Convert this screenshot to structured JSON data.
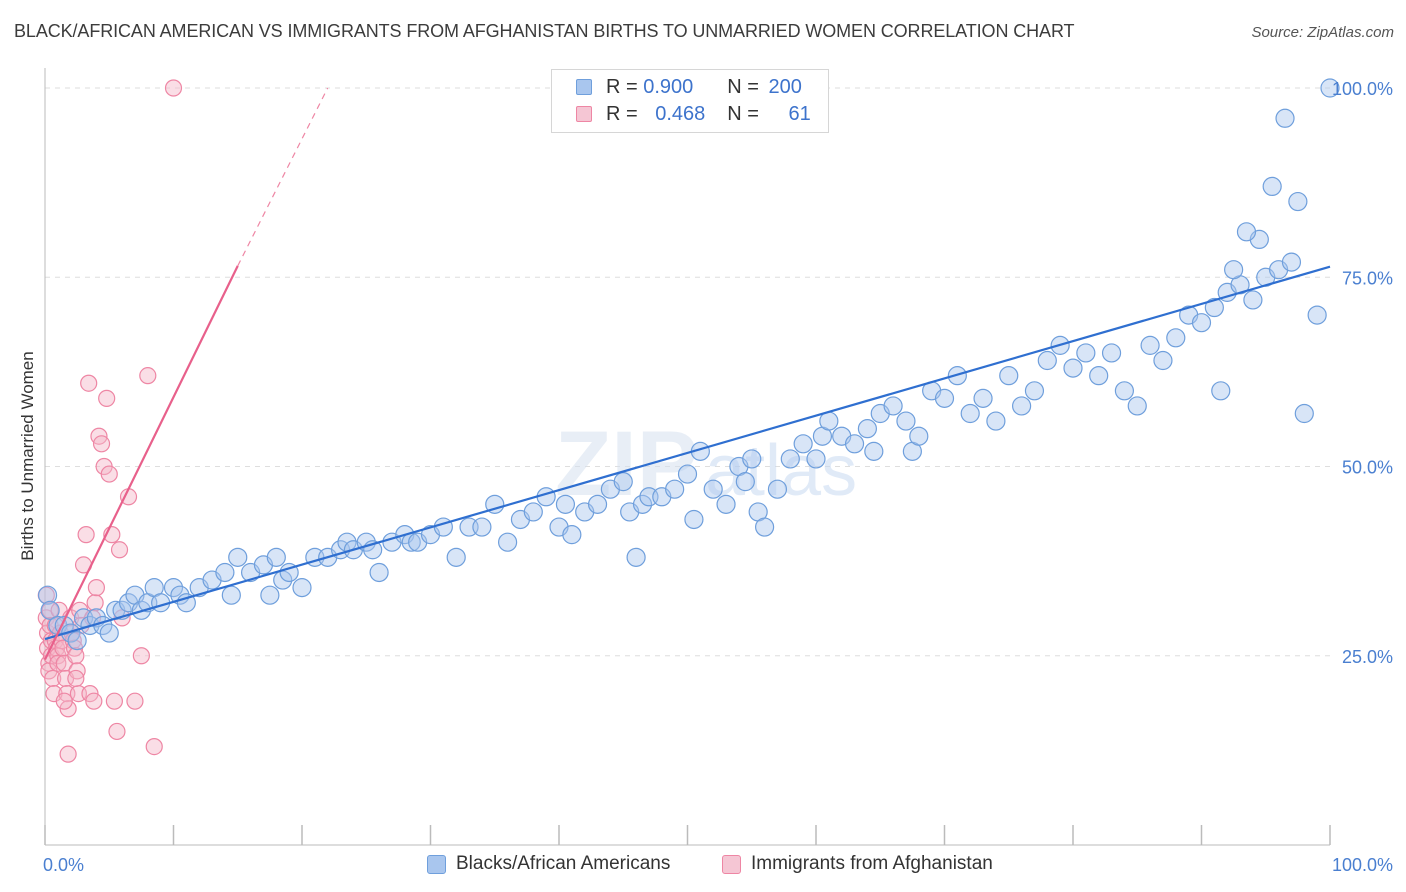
{
  "title": "BLACK/AFRICAN AMERICAN VS IMMIGRANTS FROM AFGHANISTAN BIRTHS TO UNMARRIED WOMEN CORRELATION CHART",
  "source": "Source: ZipAtlas.com",
  "colors": {
    "blue_fill": "#a9c6ee",
    "blue_stroke": "#6f9fdc",
    "blue_line": "#2f6fd0",
    "pink_fill": "#f5b6c8",
    "pink_stroke": "#ee86a4",
    "pink_line": "#e8608b",
    "tick_text": "#4a7fd0",
    "grid": "#dedede"
  },
  "watermark": {
    "zip": "ZIP",
    "atlas": "atlas"
  },
  "legend": {
    "rows": [
      {
        "r_label": "R = ",
        "r_value": "0.900",
        "n_label": "N = ",
        "n_value": "200"
      },
      {
        "r_label": "R = ",
        "r_value": "0.468",
        "n_label": "N = ",
        "n_value": "61"
      }
    ]
  },
  "bottom_legend": [
    "Blacks/African Americans",
    "Immigrants from Afghanistan"
  ],
  "chart_data": {
    "type": "scatter",
    "title": "BLACK/AFRICAN AMERICAN VS IMMIGRANTS FROM AFGHANISTAN BIRTHS TO UNMARRIED WOMEN CORRELATION CHART",
    "xlabel": "",
    "ylabel": "Births to Unmarried Women",
    "xlim": [
      0,
      100
    ],
    "ylim": [
      0,
      100
    ],
    "x_tick_labels": [
      "0.0%",
      "100.0%"
    ],
    "y_tick_labels": [
      "25.0%",
      "50.0%",
      "75.0%",
      "100.0%"
    ],
    "y_ticks": [
      25,
      50,
      75,
      100
    ],
    "grid": true,
    "legend_position": "top-center",
    "series": [
      {
        "name": "Blacks/African Americans",
        "color": "#a9c6ee",
        "r": 0.9,
        "n": 200,
        "trend": {
          "x": [
            0,
            100
          ],
          "y": [
            27.2,
            76.4
          ]
        },
        "points": [
          [
            0.2,
            33
          ],
          [
            0.4,
            31
          ],
          [
            1.0,
            29
          ],
          [
            1.5,
            29
          ],
          [
            2.0,
            28
          ],
          [
            2.5,
            27
          ],
          [
            3.0,
            30
          ],
          [
            3.5,
            29
          ],
          [
            4.0,
            30
          ],
          [
            4.5,
            29
          ],
          [
            5.0,
            28
          ],
          [
            5.5,
            31
          ],
          [
            6.0,
            31
          ],
          [
            6.5,
            32
          ],
          [
            7.0,
            33
          ],
          [
            7.5,
            31
          ],
          [
            8.0,
            32
          ],
          [
            8.5,
            34
          ],
          [
            9.0,
            32
          ],
          [
            10.0,
            34
          ],
          [
            10.5,
            33
          ],
          [
            11.0,
            32
          ],
          [
            12.0,
            34
          ],
          [
            13.0,
            35
          ],
          [
            14.0,
            36
          ],
          [
            14.5,
            33
          ],
          [
            15.0,
            38
          ],
          [
            16.0,
            36
          ],
          [
            17.0,
            37
          ],
          [
            17.5,
            33
          ],
          [
            18.0,
            38
          ],
          [
            18.5,
            35
          ],
          [
            19.0,
            36
          ],
          [
            20.0,
            34
          ],
          [
            21.0,
            38
          ],
          [
            22.0,
            38
          ],
          [
            23.0,
            39
          ],
          [
            23.5,
            40
          ],
          [
            24.0,
            39
          ],
          [
            25.0,
            40
          ],
          [
            25.5,
            39
          ],
          [
            26.0,
            36
          ],
          [
            27.0,
            40
          ],
          [
            28.0,
            41
          ],
          [
            28.5,
            40
          ],
          [
            29.0,
            40
          ],
          [
            30.0,
            41
          ],
          [
            31.0,
            42
          ],
          [
            32.0,
            38
          ],
          [
            33.0,
            42
          ],
          [
            34.0,
            42
          ],
          [
            35.0,
            45
          ],
          [
            36.0,
            40
          ],
          [
            37.0,
            43
          ],
          [
            38.0,
            44
          ],
          [
            39.0,
            46
          ],
          [
            40.0,
            42
          ],
          [
            40.5,
            45
          ],
          [
            41.0,
            41
          ],
          [
            42.0,
            44
          ],
          [
            43.0,
            45
          ],
          [
            44.0,
            47
          ],
          [
            45.0,
            48
          ],
          [
            45.5,
            44
          ],
          [
            46.0,
            38
          ],
          [
            46.5,
            45
          ],
          [
            47.0,
            46
          ],
          [
            48.0,
            46
          ],
          [
            49.0,
            47
          ],
          [
            50.0,
            49
          ],
          [
            50.5,
            43
          ],
          [
            51.0,
            52
          ],
          [
            52.0,
            47
          ],
          [
            53.0,
            45
          ],
          [
            54.0,
            50
          ],
          [
            54.5,
            48
          ],
          [
            55.0,
            51
          ],
          [
            55.5,
            44
          ],
          [
            56.0,
            42
          ],
          [
            57.0,
            47
          ],
          [
            58.0,
            51
          ],
          [
            59.0,
            53
          ],
          [
            60.0,
            51
          ],
          [
            60.5,
            54
          ],
          [
            61.0,
            56
          ],
          [
            62.0,
            54
          ],
          [
            63.0,
            53
          ],
          [
            64.0,
            55
          ],
          [
            64.5,
            52
          ],
          [
            65.0,
            57
          ],
          [
            66.0,
            58
          ],
          [
            67.0,
            56
          ],
          [
            67.5,
            52
          ],
          [
            68.0,
            54
          ],
          [
            69.0,
            60
          ],
          [
            70.0,
            59
          ],
          [
            71.0,
            62
          ],
          [
            72.0,
            57
          ],
          [
            73.0,
            59
          ],
          [
            74.0,
            56
          ],
          [
            75.0,
            62
          ],
          [
            76.0,
            58
          ],
          [
            77.0,
            60
          ],
          [
            78.0,
            64
          ],
          [
            79.0,
            66
          ],
          [
            80.0,
            63
          ],
          [
            81.0,
            65
          ],
          [
            82.0,
            62
          ],
          [
            83.0,
            65
          ],
          [
            84.0,
            60
          ],
          [
            85.0,
            58
          ],
          [
            86.0,
            66
          ],
          [
            87.0,
            64
          ],
          [
            88.0,
            67
          ],
          [
            89.0,
            70
          ],
          [
            90.0,
            69
          ],
          [
            91.0,
            71
          ],
          [
            92.0,
            73
          ],
          [
            93.0,
            74
          ],
          [
            94.0,
            72
          ],
          [
            95.0,
            75
          ],
          [
            96.0,
            76
          ],
          [
            97.0,
            77
          ],
          [
            98.0,
            57
          ],
          [
            99.0,
            70
          ],
          [
            100,
            100
          ],
          [
            96.5,
            96
          ],
          [
            97.5,
            85
          ],
          [
            95.5,
            87
          ],
          [
            94.5,
            80
          ],
          [
            93.5,
            81
          ],
          [
            92.5,
            76
          ],
          [
            91.5,
            60
          ]
        ]
      },
      {
        "name": "Immigrants from Afghanistan",
        "color": "#f5b6c8",
        "r": 0.468,
        "n": 61,
        "trend": {
          "x": [
            0,
            15
          ],
          "y": [
            24.5,
            76.5
          ]
        },
        "trend_extension": {
          "x": [
            15,
            22
          ],
          "y": [
            76.5,
            100
          ]
        },
        "points": [
          [
            0.1,
            33
          ],
          [
            0.1,
            30
          ],
          [
            0.2,
            28
          ],
          [
            0.2,
            26
          ],
          [
            0.3,
            24
          ],
          [
            0.3,
            23
          ],
          [
            0.4,
            31
          ],
          [
            0.4,
            29
          ],
          [
            0.5,
            27
          ],
          [
            0.5,
            25
          ],
          [
            0.6,
            22
          ],
          [
            0.7,
            20
          ],
          [
            0.8,
            29
          ],
          [
            0.8,
            27
          ],
          [
            0.9,
            26
          ],
          [
            1.0,
            25
          ],
          [
            1.0,
            24
          ],
          [
            1.1,
            31
          ],
          [
            1.2,
            28
          ],
          [
            1.3,
            27
          ],
          [
            1.4,
            26
          ],
          [
            1.5,
            24
          ],
          [
            1.6,
            22
          ],
          [
            1.7,
            20
          ],
          [
            1.8,
            18
          ],
          [
            1.8,
            12
          ],
          [
            2.0,
            30
          ],
          [
            2.1,
            28
          ],
          [
            2.2,
            27
          ],
          [
            2.3,
            26
          ],
          [
            2.4,
            25
          ],
          [
            2.5,
            23
          ],
          [
            2.6,
            20
          ],
          [
            2.7,
            31
          ],
          [
            2.8,
            29
          ],
          [
            3.0,
            37
          ],
          [
            3.2,
            41
          ],
          [
            3.4,
            61
          ],
          [
            3.5,
            20
          ],
          [
            3.7,
            30
          ],
          [
            3.9,
            32
          ],
          [
            4.0,
            34
          ],
          [
            4.2,
            54
          ],
          [
            4.4,
            53
          ],
          [
            4.6,
            50
          ],
          [
            4.8,
            59
          ],
          [
            5.0,
            49
          ],
          [
            5.2,
            41
          ],
          [
            5.4,
            19
          ],
          [
            5.6,
            15
          ],
          [
            5.8,
            39
          ],
          [
            6.0,
            30
          ],
          [
            6.5,
            46
          ],
          [
            7.0,
            19
          ],
          [
            7.5,
            25
          ],
          [
            8.0,
            62
          ],
          [
            8.5,
            13
          ],
          [
            10.0,
            100
          ],
          [
            1.5,
            19
          ],
          [
            2.4,
            22
          ],
          [
            3.8,
            19
          ]
        ]
      }
    ]
  }
}
